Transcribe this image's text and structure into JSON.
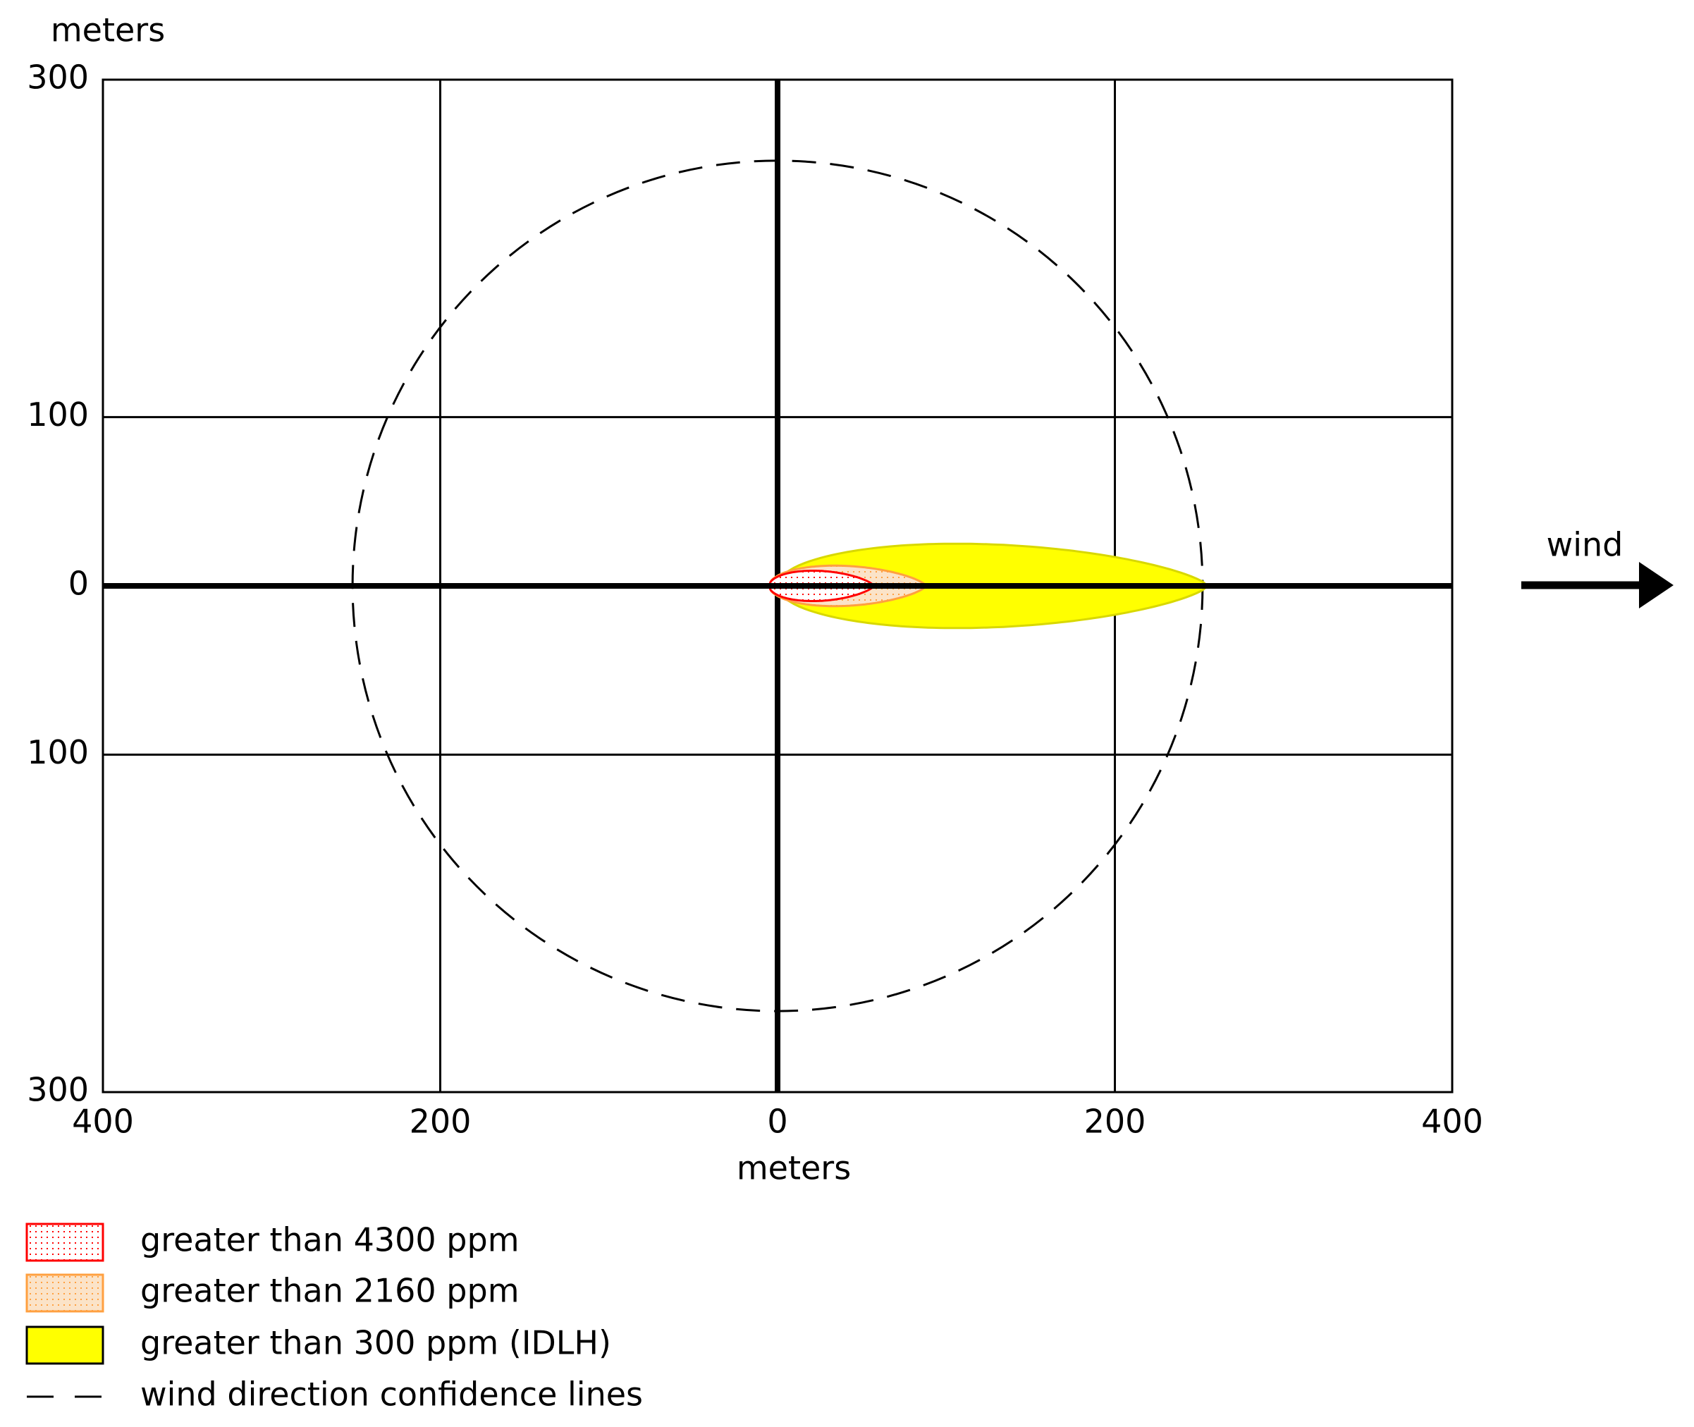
{
  "chart_data": {
    "type": "threat-zone",
    "y_axis_label": "meters",
    "x_axis_label": "meters",
    "xlim": [
      -400,
      400
    ],
    "xticks": [
      {
        "value": -400,
        "label": "400"
      },
      {
        "value": -200,
        "label": "200"
      },
      0,
      200,
      400
    ],
    "ylim": [
      -300,
      300
    ],
    "yticks": [
      {
        "value": -300,
        "label": "300"
      },
      {
        "value": -100,
        "label": "100"
      },
      0,
      100,
      300
    ],
    "grid": true,
    "wind_label": "wind",
    "series": [
      {
        "name": "greater than 4300 ppm",
        "color": "#ff0000",
        "fill": "dotted",
        "x_start": -5,
        "x_end": 57,
        "half_width": 9
      },
      {
        "name": "greater than 2160 ppm",
        "color": "#ffa040",
        "fill": "dotted",
        "x_start": -5,
        "x_end": 88,
        "half_width": 12
      },
      {
        "name": "greater than 300 ppm (IDLH)",
        "color": "#ffff00",
        "fill": "solid",
        "x_start": 0,
        "x_end": 255,
        "half_width": 25
      }
    ],
    "confidence": {
      "name": "wind direction confidence lines",
      "radius": 252
    }
  }
}
